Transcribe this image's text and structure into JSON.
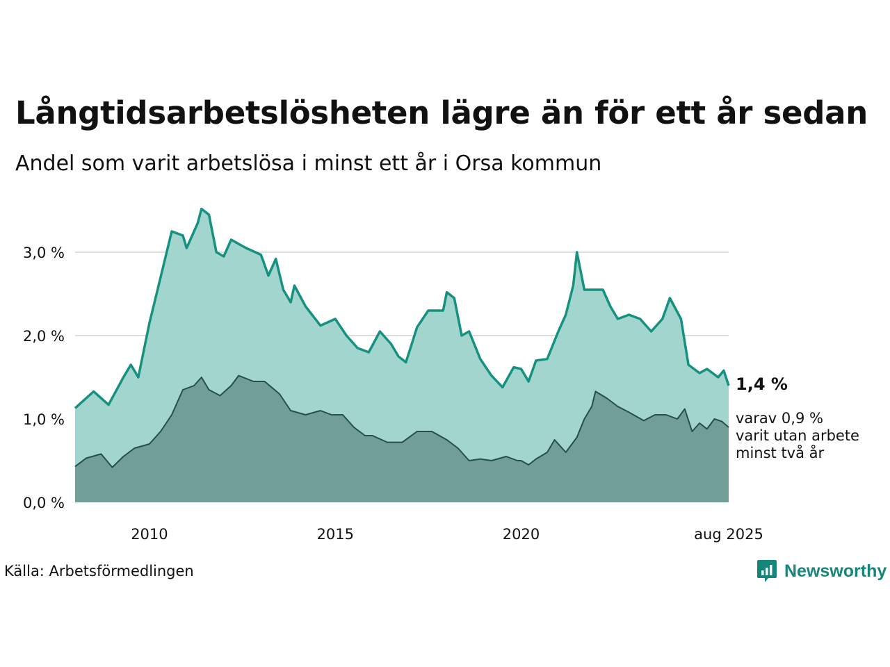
{
  "title": "Långtidsarbetslösheten lägre än för ett år sedan",
  "subtitle": "Andel som varit arbetslösa i minst ett år i Orsa kommun",
  "source": "Källa: Arbetsförmedlingen",
  "brand": "Newsworthy",
  "colors": {
    "line1": "#16917f",
    "area1": "#a3d5cf",
    "line2": "#264f49",
    "area2": "#719e97",
    "brand": "#16857a",
    "grid": "#dddddd"
  },
  "annotations": {
    "last_value": "1,4 %",
    "sub_value": "varav 0,9 %",
    "sub_line2": "varit utan arbete",
    "sub_line3": "minst två år"
  },
  "chart_data": {
    "type": "area",
    "y_ticks": [
      "0,0 %",
      "1,0 %",
      "2,0 %",
      "3,0 %"
    ],
    "x_ticks": [
      "2010",
      "2015",
      "2020",
      "aug 2025"
    ],
    "x_tick_values": [
      2010,
      2015,
      2020,
      2025.583
    ],
    "ylim": [
      0,
      3.6
    ],
    "x_range": [
      2008.0,
      2025.583
    ],
    "grid": true,
    "series": [
      {
        "key": "minst_ett_ar",
        "points": [
          [
            2008.0,
            1.13
          ],
          [
            2008.5,
            1.33
          ],
          [
            2008.9,
            1.17
          ],
          [
            2009.3,
            1.5
          ],
          [
            2009.5,
            1.65
          ],
          [
            2009.7,
            1.5
          ],
          [
            2010.0,
            2.15
          ],
          [
            2010.3,
            2.7
          ],
          [
            2010.6,
            3.25
          ],
          [
            2010.9,
            3.2
          ],
          [
            2011.0,
            3.05
          ],
          [
            2011.3,
            3.35
          ],
          [
            2011.4,
            3.52
          ],
          [
            2011.6,
            3.45
          ],
          [
            2011.8,
            3.0
          ],
          [
            2012.0,
            2.95
          ],
          [
            2012.2,
            3.15
          ],
          [
            2012.6,
            3.05
          ],
          [
            2013.0,
            2.97
          ],
          [
            2013.2,
            2.72
          ],
          [
            2013.4,
            2.92
          ],
          [
            2013.6,
            2.55
          ],
          [
            2013.8,
            2.4
          ],
          [
            2013.9,
            2.6
          ],
          [
            2014.2,
            2.35
          ],
          [
            2014.6,
            2.12
          ],
          [
            2015.0,
            2.2
          ],
          [
            2015.3,
            2.0
          ],
          [
            2015.6,
            1.85
          ],
          [
            2015.9,
            1.8
          ],
          [
            2016.2,
            2.05
          ],
          [
            2016.5,
            1.9
          ],
          [
            2016.7,
            1.75
          ],
          [
            2016.9,
            1.68
          ],
          [
            2017.2,
            2.1
          ],
          [
            2017.5,
            2.3
          ],
          [
            2017.9,
            2.3
          ],
          [
            2018.0,
            2.52
          ],
          [
            2018.2,
            2.45
          ],
          [
            2018.4,
            2.0
          ],
          [
            2018.6,
            2.05
          ],
          [
            2018.9,
            1.72
          ],
          [
            2019.2,
            1.52
          ],
          [
            2019.5,
            1.38
          ],
          [
            2019.8,
            1.62
          ],
          [
            2020.0,
            1.6
          ],
          [
            2020.2,
            1.45
          ],
          [
            2020.4,
            1.7
          ],
          [
            2020.7,
            1.72
          ],
          [
            2021.0,
            2.05
          ],
          [
            2021.2,
            2.25
          ],
          [
            2021.4,
            2.6
          ],
          [
            2021.5,
            3.0
          ],
          [
            2021.7,
            2.55
          ],
          [
            2021.9,
            2.55
          ],
          [
            2022.2,
            2.55
          ],
          [
            2022.4,
            2.35
          ],
          [
            2022.6,
            2.2
          ],
          [
            2022.9,
            2.25
          ],
          [
            2023.2,
            2.2
          ],
          [
            2023.5,
            2.05
          ],
          [
            2023.8,
            2.2
          ],
          [
            2024.0,
            2.45
          ],
          [
            2024.3,
            2.2
          ],
          [
            2024.5,
            1.65
          ],
          [
            2024.8,
            1.55
          ],
          [
            2025.0,
            1.6
          ],
          [
            2025.3,
            1.5
          ],
          [
            2025.45,
            1.58
          ],
          [
            2025.583,
            1.4
          ]
        ]
      },
      {
        "key": "minst_tva_ar",
        "points": [
          [
            2008.0,
            0.43
          ],
          [
            2008.3,
            0.53
          ],
          [
            2008.7,
            0.58
          ],
          [
            2009.0,
            0.42
          ],
          [
            2009.3,
            0.55
          ],
          [
            2009.6,
            0.65
          ],
          [
            2010.0,
            0.7
          ],
          [
            2010.3,
            0.85
          ],
          [
            2010.6,
            1.05
          ],
          [
            2010.9,
            1.35
          ],
          [
            2011.2,
            1.4
          ],
          [
            2011.4,
            1.5
          ],
          [
            2011.6,
            1.35
          ],
          [
            2011.9,
            1.28
          ],
          [
            2012.2,
            1.4
          ],
          [
            2012.4,
            1.52
          ],
          [
            2012.8,
            1.45
          ],
          [
            2013.1,
            1.45
          ],
          [
            2013.5,
            1.3
          ],
          [
            2013.8,
            1.1
          ],
          [
            2014.2,
            1.05
          ],
          [
            2014.6,
            1.1
          ],
          [
            2014.9,
            1.05
          ],
          [
            2015.2,
            1.05
          ],
          [
            2015.5,
            0.9
          ],
          [
            2015.8,
            0.8
          ],
          [
            2016.0,
            0.8
          ],
          [
            2016.4,
            0.72
          ],
          [
            2016.8,
            0.72
          ],
          [
            2017.2,
            0.85
          ],
          [
            2017.6,
            0.85
          ],
          [
            2018.0,
            0.75
          ],
          [
            2018.3,
            0.65
          ],
          [
            2018.6,
            0.5
          ],
          [
            2018.9,
            0.52
          ],
          [
            2019.2,
            0.5
          ],
          [
            2019.6,
            0.55
          ],
          [
            2019.9,
            0.5
          ],
          [
            2020.0,
            0.5
          ],
          [
            2020.2,
            0.45
          ],
          [
            2020.4,
            0.52
          ],
          [
            2020.7,
            0.6
          ],
          [
            2020.9,
            0.75
          ],
          [
            2021.2,
            0.6
          ],
          [
            2021.5,
            0.78
          ],
          [
            2021.7,
            1.0
          ],
          [
            2021.9,
            1.15
          ],
          [
            2022.0,
            1.33
          ],
          [
            2022.3,
            1.25
          ],
          [
            2022.6,
            1.15
          ],
          [
            2022.9,
            1.08
          ],
          [
            2023.3,
            0.98
          ],
          [
            2023.6,
            1.05
          ],
          [
            2023.9,
            1.05
          ],
          [
            2024.2,
            1.0
          ],
          [
            2024.4,
            1.12
          ],
          [
            2024.6,
            0.85
          ],
          [
            2024.8,
            0.95
          ],
          [
            2025.0,
            0.88
          ],
          [
            2025.2,
            1.0
          ],
          [
            2025.4,
            0.97
          ],
          [
            2025.583,
            0.9
          ]
        ]
      }
    ]
  }
}
